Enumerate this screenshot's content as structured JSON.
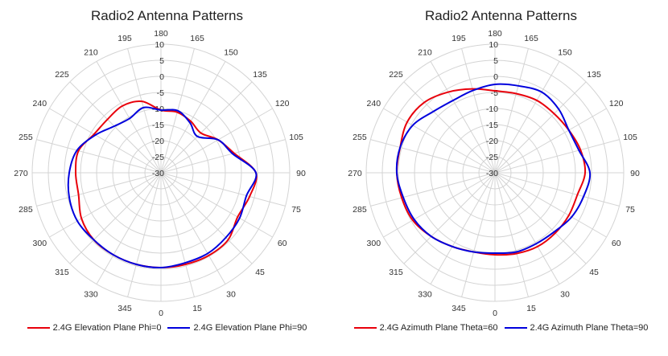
{
  "chart_data": [
    {
      "type": "polar-line",
      "title": "Radio2 Antenna Patterns",
      "angle_ticks": [
        "0",
        "15",
        "30",
        "45",
        "60",
        "75",
        "90",
        "105",
        "120",
        "135",
        "150",
        "165",
        "180",
        "195",
        "210",
        "225",
        "240",
        "255",
        "270",
        "285",
        "300",
        "315",
        "330",
        "345"
      ],
      "radial_ticks": [
        "-30",
        "-25",
        "-20",
        "-15",
        "-10",
        "-5",
        "0",
        "5",
        "10"
      ],
      "rlim": [
        -30,
        10
      ],
      "angle_zero": "bottom",
      "angle_direction": "counterclockwise",
      "grid": true,
      "legend_position": "bottom",
      "theta": [
        0,
        15,
        30,
        45,
        60,
        75,
        90,
        105,
        120,
        135,
        150,
        165,
        180,
        195,
        210,
        225,
        240,
        255,
        270,
        285,
        300,
        315,
        330,
        345
      ],
      "series": [
        {
          "name": "2.4G Elevation Plane Phi=0",
          "color": "#e8000b",
          "values": [
            -0.5,
            -0.5,
            -0.3,
            -0.5,
            -2.5,
            -1.5,
            -0.5,
            -6.5,
            -9.5,
            -12.5,
            -11.5,
            -10.5,
            -10.5,
            -7,
            -6,
            -6.5,
            -6,
            -3.5,
            -3.5,
            -3.5,
            -1.5,
            -0.5,
            -0.5,
            -0.5
          ]
        },
        {
          "name": "2.4G Elevation Plane Phi=90",
          "color": "#0000dd",
          "values": [
            -0.5,
            -1,
            -1,
            -1.5,
            -1.8,
            -2.5,
            -0.5,
            -7,
            -9.5,
            -14,
            -12,
            -10,
            -10.5,
            -9,
            -10.5,
            -9.5,
            -6.5,
            -3,
            -1.5,
            -0.5,
            0,
            -0.5,
            -0.5,
            -0.5
          ]
        }
      ]
    },
    {
      "type": "polar-line",
      "title": "Radio2 Antenna Patterns",
      "angle_ticks": [
        "0",
        "15",
        "30",
        "45",
        "60",
        "75",
        "90",
        "105",
        "120",
        "135",
        "150",
        "165",
        "180",
        "195",
        "210",
        "225",
        "240",
        "255",
        "270",
        "285",
        "300",
        "315",
        "330",
        "345"
      ],
      "radial_ticks": [
        "-30",
        "-25",
        "-20",
        "-15",
        "-10",
        "-5",
        "0",
        "5",
        "10"
      ],
      "rlim": [
        -30,
        10
      ],
      "angle_zero": "bottom",
      "angle_direction": "counterclockwise",
      "grid": true,
      "legend_position": "bottom",
      "theta": [
        0,
        15,
        30,
        45,
        60,
        75,
        90,
        105,
        120,
        135,
        150,
        165,
        180,
        195,
        210,
        225,
        240,
        255,
        270,
        285,
        300,
        315,
        330,
        345
      ],
      "series": [
        {
          "name": "2.4G Azimuth Plane Theta=60",
          "color": "#e8000b",
          "values": [
            -4.5,
            -4,
            -3.5,
            -3.5,
            -3.5,
            -3.5,
            -2,
            -2.5,
            -3.5,
            -4,
            -4,
            -4.5,
            -4.5,
            -3,
            -1,
            1,
            1.5,
            0.5,
            0.5,
            0,
            -0.5,
            -2,
            -3.5,
            -4.5
          ]
        },
        {
          "name": "2.4G Azimuth Plane Theta=90",
          "color": "#0000dd",
          "values": [
            -5,
            -4.5,
            -4.5,
            -4,
            -2.5,
            -1.5,
            -0.5,
            -3,
            -3.5,
            -2,
            -1,
            -2,
            -2.5,
            -3.5,
            -4,
            -3,
            -0.5,
            0.5,
            0.5,
            -0.5,
            -1,
            -2,
            -3.5,
            -4.5
          ]
        }
      ]
    }
  ]
}
